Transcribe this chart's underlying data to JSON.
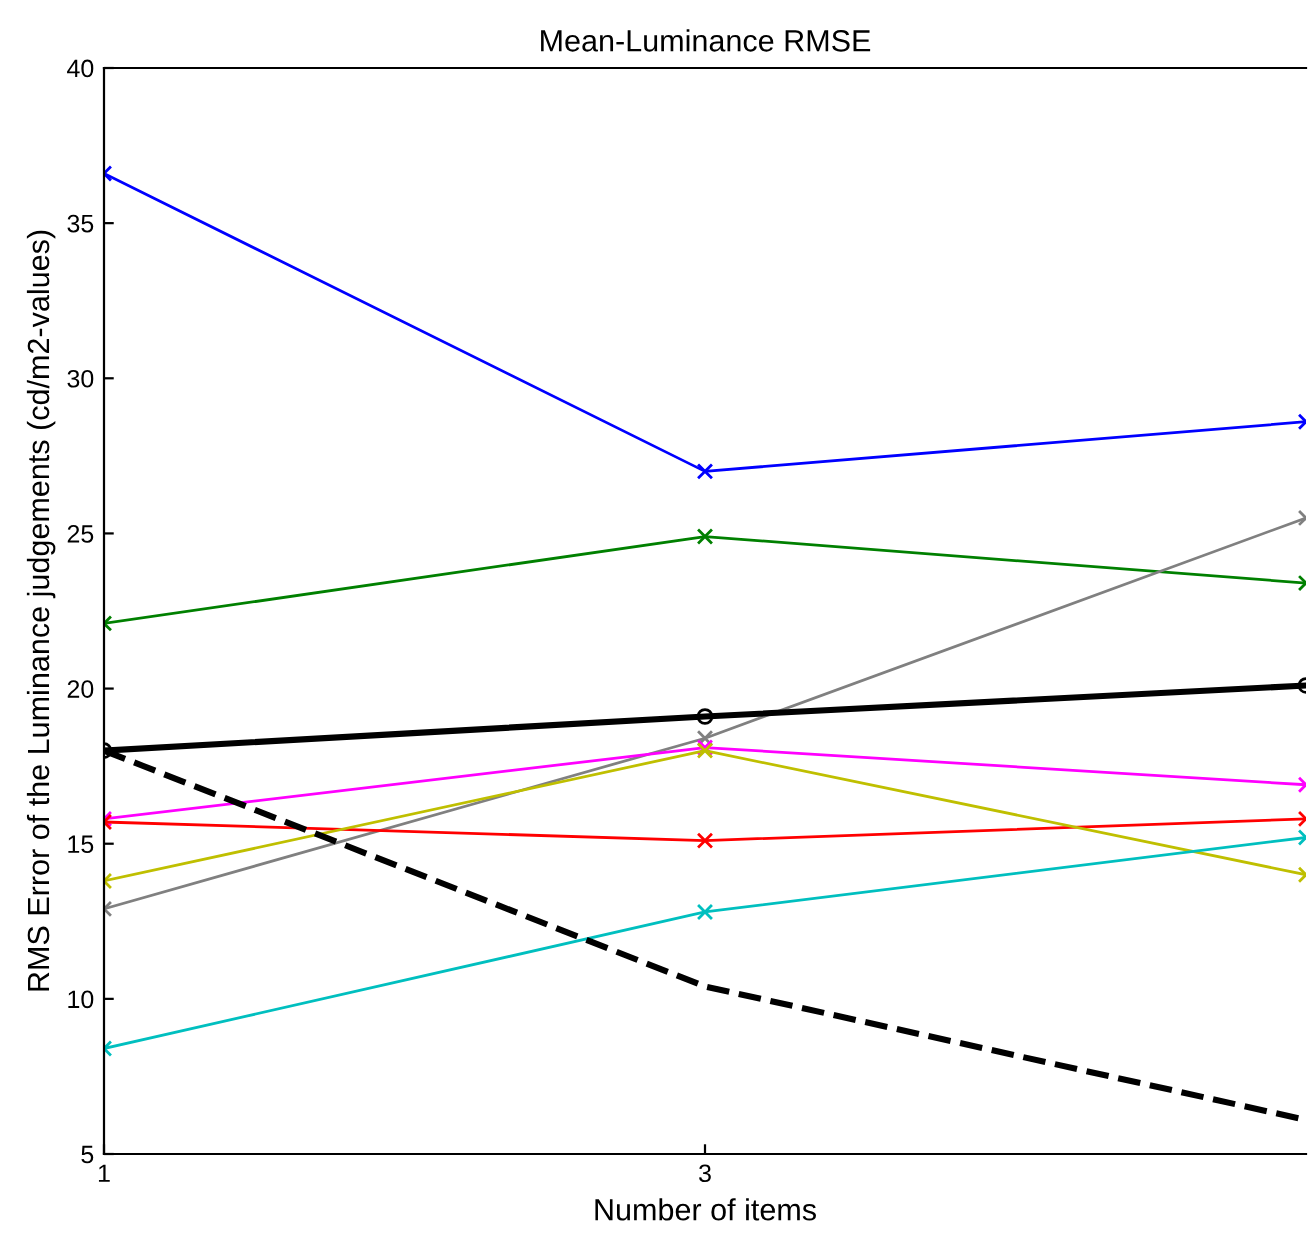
{
  "chart_data": {
    "type": "line",
    "title": "Mean-Luminance RMSE",
    "xlabel": "Number of items",
    "ylabel": "RMS Error of the Luminance judgements (cd/m2-values)",
    "x": [
      1,
      3,
      5
    ],
    "xlim": [
      1,
      5
    ],
    "xticks": [
      1,
      3
    ],
    "ylim": [
      5,
      40
    ],
    "yticks": [
      5,
      10,
      15,
      20,
      25,
      30,
      35,
      40
    ],
    "grid": false,
    "legend": false,
    "series": [
      {
        "color": "#0000ff",
        "marker": "cross",
        "line_style": "solid",
        "values": [
          36.6,
          27.0,
          28.6
        ]
      },
      {
        "color": "#008000",
        "marker": "cross",
        "line_style": "solid",
        "values": [
          22.1,
          24.9,
          23.4
        ]
      },
      {
        "color": "#808080",
        "marker": "cross",
        "line_style": "solid",
        "values": [
          12.9,
          18.4,
          25.5
        ]
      },
      {
        "color": "#000000",
        "marker": "circle",
        "line_style": "solid",
        "values": [
          18.0,
          19.1,
          20.1
        ]
      },
      {
        "color": "#ff00ff",
        "marker": "cross",
        "line_style": "solid",
        "values": [
          15.8,
          18.1,
          16.9
        ]
      },
      {
        "color": "#ff0000",
        "marker": "cross",
        "line_style": "solid",
        "values": [
          15.7,
          15.1,
          15.8
        ]
      },
      {
        "color": "#bfbf00",
        "marker": "cross",
        "line_style": "solid",
        "values": [
          13.8,
          18.0,
          14.0
        ]
      },
      {
        "color": "#00bfbf",
        "marker": "cross",
        "line_style": "solid",
        "values": [
          8.4,
          12.8,
          15.2
        ]
      },
      {
        "color": "#000000",
        "marker": "none",
        "line_style": "dashed",
        "values": [
          18.0,
          10.4,
          6.1
        ]
      }
    ]
  }
}
